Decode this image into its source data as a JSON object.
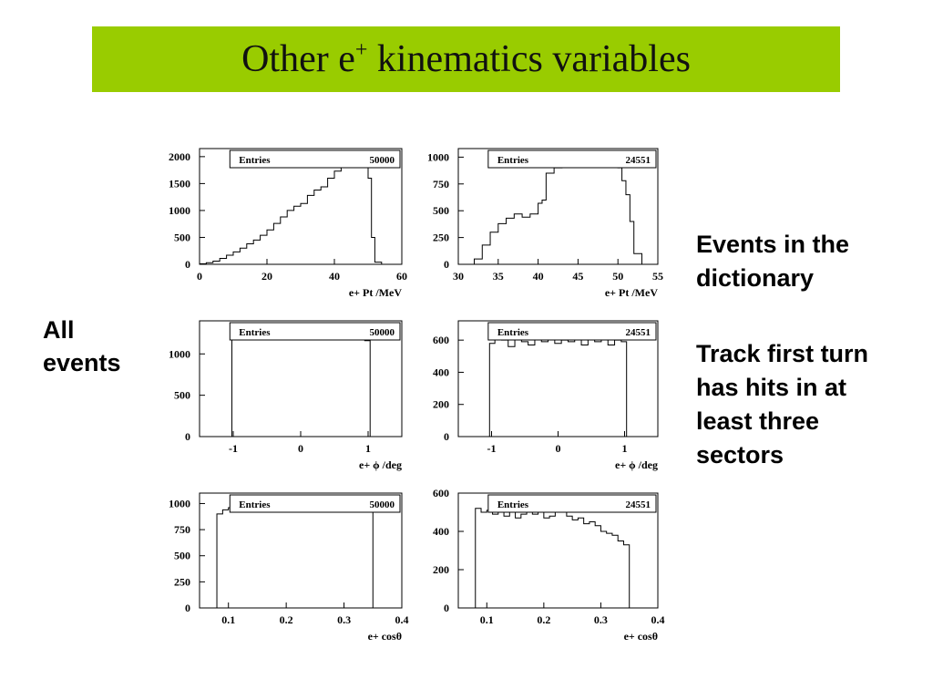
{
  "title": {
    "text": "Other e",
    "sup": "+",
    "rest": " kinematics variables"
  },
  "notes": {
    "left": [
      "All",
      "events"
    ],
    "right_1": [
      "Events in the",
      "dictionary"
    ],
    "right_2": [
      "Track first turn",
      "has hits in at",
      "least three",
      "sectors"
    ]
  },
  "colors": {
    "title_bar": "#99cc00",
    "line": "#000000",
    "background": "#ffffff"
  },
  "chart_data": [
    {
      "type": "histogram",
      "stats_label": "Entries",
      "entries": "50000",
      "xlabel": "e+ Pt /MeV",
      "xlim": [
        0,
        60
      ],
      "ylim": [
        0,
        2150
      ],
      "x_ticks": [
        0,
        20,
        40,
        60
      ],
      "y_ticks": [
        0,
        500,
        1000,
        1500,
        2000
      ],
      "bin_edges": [
        0,
        2,
        4,
        6,
        8,
        10,
        12,
        14,
        16,
        18,
        20,
        22,
        24,
        26,
        28,
        30,
        32,
        34,
        36,
        38,
        40,
        42,
        44,
        46,
        48,
        50,
        51,
        52,
        54
      ],
      "values": [
        10,
        30,
        60,
        110,
        170,
        230,
        300,
        380,
        450,
        540,
        640,
        760,
        880,
        1000,
        1080,
        1130,
        1280,
        1380,
        1440,
        1600,
        1730,
        1800,
        1860,
        1920,
        1940,
        1600,
        500,
        40
      ]
    },
    {
      "type": "histogram",
      "stats_label": "Entries",
      "entries": "24551",
      "xlabel": "e+ Pt /MeV",
      "xlim": [
        30,
        55
      ],
      "ylim": [
        0,
        1080
      ],
      "x_ticks": [
        30,
        35,
        40,
        45,
        50,
        55
      ],
      "y_ticks": [
        0,
        250,
        500,
        750,
        1000
      ],
      "bin_edges": [
        32,
        33,
        34,
        35,
        36,
        37,
        38,
        39,
        40,
        40.5,
        41,
        42,
        43,
        44,
        45,
        46,
        47,
        48,
        49,
        50,
        50.5,
        51,
        51.5,
        52,
        53
      ],
      "values": [
        50,
        180,
        300,
        380,
        430,
        470,
        440,
        470,
        570,
        600,
        850,
        900,
        920,
        930,
        920,
        940,
        930,
        950,
        930,
        900,
        780,
        650,
        400,
        100
      ]
    },
    {
      "type": "histogram",
      "stats_label": "Entries",
      "entries": "50000",
      "xlabel": "e+ ϕ /deg",
      "xlim": [
        -1.5,
        1.5
      ],
      "ylim": [
        0,
        1400
      ],
      "x_ticks": [
        -1,
        0,
        1
      ],
      "y_ticks": [
        0,
        500,
        1000
      ],
      "bin_edges": [
        -1.02,
        -0.95,
        -0.85,
        -0.75,
        -0.65,
        -0.55,
        -0.45,
        -0.35,
        -0.25,
        -0.15,
        -0.05,
        0.05,
        0.15,
        0.25,
        0.35,
        0.45,
        0.55,
        0.65,
        0.75,
        0.85,
        0.95,
        1.03
      ],
      "values": [
        1190,
        1230,
        1200,
        1170,
        1220,
        1210,
        1180,
        1230,
        1170,
        1240,
        1200,
        1190,
        1220,
        1170,
        1230,
        1210,
        1180,
        1220,
        1240,
        1190,
        1160
      ]
    },
    {
      "type": "histogram",
      "stats_label": "Entries",
      "entries": "24551",
      "xlabel": "e+ ϕ /deg",
      "xlim": [
        -1.5,
        1.5
      ],
      "ylim": [
        0,
        720
      ],
      "x_ticks": [
        -1,
        0,
        1
      ],
      "y_ticks": [
        0,
        200,
        400,
        600
      ],
      "bin_edges": [
        -1.03,
        -0.95,
        -0.85,
        -0.75,
        -0.65,
        -0.55,
        -0.45,
        -0.35,
        -0.25,
        -0.15,
        -0.05,
        0.05,
        0.15,
        0.25,
        0.35,
        0.45,
        0.55,
        0.65,
        0.75,
        0.85,
        0.95,
        1.03
      ],
      "values": [
        580,
        620,
        600,
        560,
        610,
        590,
        570,
        610,
        590,
        620,
        580,
        600,
        590,
        610,
        570,
        620,
        590,
        610,
        570,
        600,
        590
      ]
    },
    {
      "type": "histogram",
      "stats_label": "Entries",
      "entries": "50000",
      "xlabel": "e+ cosθ",
      "xlim": [
        0.05,
        0.4
      ],
      "ylim": [
        0,
        1100
      ],
      "x_ticks": [
        0.1,
        0.2,
        0.3,
        0.4
      ],
      "y_ticks": [
        0,
        250,
        500,
        750,
        1000
      ],
      "bin_edges": [
        0.08,
        0.09,
        0.1,
        0.11,
        0.12,
        0.13,
        0.14,
        0.15,
        0.16,
        0.17,
        0.18,
        0.19,
        0.2,
        0.21,
        0.22,
        0.23,
        0.24,
        0.25,
        0.26,
        0.27,
        0.28,
        0.29,
        0.3,
        0.31,
        0.32,
        0.33,
        0.34,
        0.35
      ],
      "values": [
        900,
        940,
        960,
        920,
        950,
        970,
        930,
        950,
        960,
        940,
        930,
        950,
        960,
        920,
        950,
        940,
        930,
        960,
        950,
        940,
        920,
        960,
        950,
        930,
        960,
        940,
        950
      ]
    },
    {
      "type": "histogram",
      "stats_label": "Entries",
      "entries": "24551",
      "xlabel": "e+ cosθ",
      "xlim": [
        0.05,
        0.4
      ],
      "ylim": [
        0,
        600
      ],
      "x_ticks": [
        0.1,
        0.2,
        0.3,
        0.4
      ],
      "y_ticks": [
        0,
        200,
        400,
        600
      ],
      "bin_edges": [
        0.08,
        0.09,
        0.1,
        0.11,
        0.12,
        0.13,
        0.14,
        0.15,
        0.16,
        0.17,
        0.18,
        0.19,
        0.2,
        0.21,
        0.22,
        0.23,
        0.24,
        0.25,
        0.26,
        0.27,
        0.28,
        0.29,
        0.3,
        0.31,
        0.32,
        0.33,
        0.34,
        0.35
      ],
      "values": [
        520,
        500,
        510,
        490,
        500,
        480,
        510,
        470,
        490,
        500,
        490,
        510,
        470,
        480,
        500,
        510,
        480,
        460,
        470,
        440,
        450,
        430,
        400,
        390,
        380,
        350,
        330
      ]
    }
  ]
}
